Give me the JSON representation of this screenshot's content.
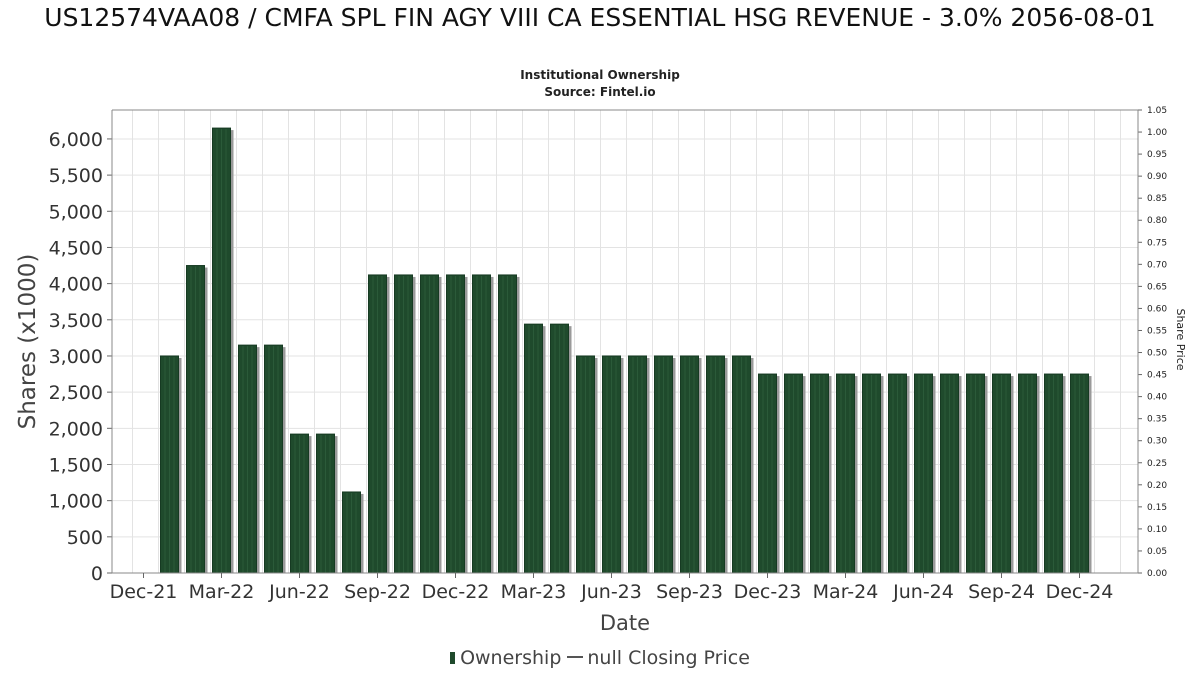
{
  "chart_data": {
    "type": "bar",
    "title": "US12574VAA08 / CMFA SPL FIN AGY VIII CA ESSENTIAL HSG REVENUE - 3.0% 2056-08-01",
    "subtitle": "Institutional Ownership",
    "source": "Source: Fintel.io",
    "xlabel": "Date",
    "ylabel": "Shares (x1000)",
    "y2label": "Share Price",
    "ylim": [
      0,
      6400
    ],
    "y2lim": [
      0,
      1.05
    ],
    "yticks": [
      "0",
      "500",
      "1,000",
      "1,500",
      "2,000",
      "2,500",
      "3,000",
      "3,500",
      "4,000",
      "4,500",
      "5,000",
      "5,500",
      "6,000"
    ],
    "y2ticks": [
      "0.00",
      "0.05",
      "0.10",
      "0.15",
      "0.20",
      "0.25",
      "0.30",
      "0.35",
      "0.40",
      "0.45",
      "0.50",
      "0.55",
      "0.60",
      "0.65",
      "0.70",
      "0.75",
      "0.80",
      "0.85",
      "0.90",
      "0.95",
      "1.00",
      "1.05"
    ],
    "xticks": [
      "Dec-21",
      "Mar-22",
      "Jun-22",
      "Sep-22",
      "Dec-22",
      "Mar-23",
      "Jun-23",
      "Sep-23",
      "Dec-23",
      "Mar-24",
      "Jun-24",
      "Sep-24",
      "Dec-24"
    ],
    "grid": true,
    "legend_position": "bottom",
    "series": [
      {
        "name": "Ownership",
        "color": "#1f4a2c",
        "values": [
          3000,
          4250,
          6150,
          3150,
          3150,
          1920,
          1920,
          1120,
          4120,
          4120,
          4120,
          4120,
          4120,
          4120,
          3440,
          3440,
          3000,
          3000,
          3000,
          3000,
          3000,
          3000,
          3000,
          2750,
          2750,
          2750,
          2750,
          2750,
          2750,
          2750,
          2750,
          2750,
          2750,
          2750,
          2750,
          2750
        ]
      }
    ],
    "legend": {
      "ownership_label": "Ownership",
      "price_label": "null Closing Price"
    }
  }
}
